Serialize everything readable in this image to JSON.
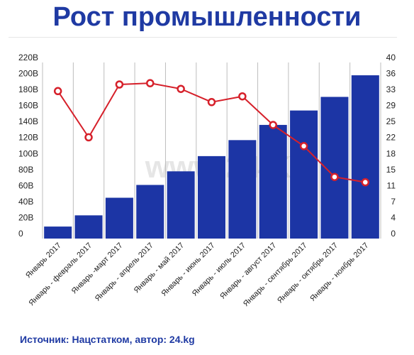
{
  "title": "Рост промышленности",
  "source": "Источник: Нацстатком, автор: 24.kg",
  "watermark": "www.24.KG",
  "colors": {
    "bar": "#1c35a5",
    "line": "#d6202a",
    "grid": "#bdbdbd",
    "title": "#1f3aa3"
  },
  "chart_data": {
    "type": "bar",
    "title": "Рост промышленности",
    "categories": [
      "Январь 2017",
      "Январь - февраль 2017",
      "Январь -март 2017",
      "Январь - апрель 2017",
      "Январь - май 2017",
      "Январь - июнь 2017",
      "Январь - июль 2017",
      "Январь - август 2017",
      "Январь - сентябрь 2017",
      "Январь - октябрь 2017",
      "Январь - ноябрь 2017"
    ],
    "series": [
      {
        "type": "bar",
        "axis": "left",
        "values": [
          15,
          29,
          51,
          67,
          84,
          103,
          123,
          142,
          160,
          177,
          204
        ]
      },
      {
        "type": "line",
        "axis": "right",
        "values": [
          33.5,
          23,
          35,
          35.3,
          34,
          31,
          32.3,
          25.8,
          21,
          14,
          12.8
        ]
      }
    ],
    "y_left": {
      "ticks": [
        "0",
        "20B",
        "40B",
        "60B",
        "80B",
        "100B",
        "120B",
        "140B",
        "160B",
        "180B",
        "200B",
        "220B"
      ],
      "ylim": [
        0,
        220
      ]
    },
    "y_right": {
      "ticks": [
        "0",
        "4",
        "7",
        "11",
        "15",
        "18",
        "22",
        "25",
        "29",
        "33",
        "36",
        "40"
      ],
      "ylim": [
        0,
        40
      ]
    },
    "grid": "vertical",
    "legend": "none"
  }
}
